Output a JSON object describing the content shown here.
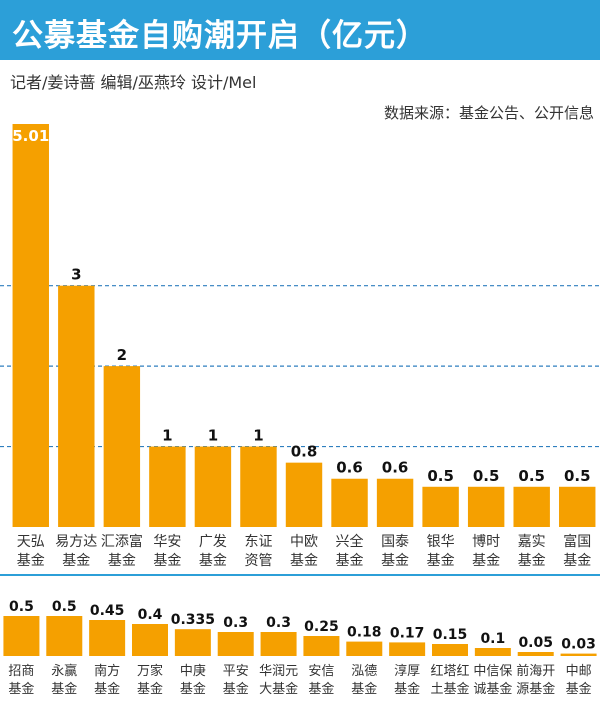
{
  "header": {
    "title": "公募基金自购潮开启（亿元）",
    "credits": "记者/姜诗蔷   编辑/巫燕玲  设计/Mel",
    "source": "数据来源：基金公告、公开信息"
  },
  "colors": {
    "header_bg": "#2c9fd8",
    "bar": "#f5a000",
    "gridline": "#2f7fbf",
    "divider": "#2c9fd8"
  },
  "chart_data": [
    {
      "type": "bar",
      "title": "",
      "xlabel": "",
      "ylabel": "",
      "ylim": [
        0,
        5.01
      ],
      "gridlines_at": [
        1,
        2,
        3
      ],
      "grid": "dashed horizontal",
      "categories": [
        [
          "天弘",
          "基金"
        ],
        [
          "易方达",
          "基金"
        ],
        [
          "汇添富",
          "基金"
        ],
        [
          "华安",
          "基金"
        ],
        [
          "广发",
          "基金"
        ],
        [
          "东证",
          "资管"
        ],
        [
          "中欧",
          "基金"
        ],
        [
          "兴全",
          "基金"
        ],
        [
          "国泰",
          "基金"
        ],
        [
          "银华",
          "基金"
        ],
        [
          "博时",
          "基金"
        ],
        [
          "嘉实",
          "基金"
        ],
        [
          "富国",
          "基金"
        ]
      ],
      "values": [
        5.01,
        3,
        2,
        1,
        1,
        1,
        0.8,
        0.6,
        0.6,
        0.5,
        0.5,
        0.5,
        0.5
      ],
      "value_labels": [
        "5.01",
        "3",
        "2",
        "1",
        "1",
        "1",
        "0.8",
        "0.6",
        "0.6",
        "0.5",
        "0.5",
        "0.5",
        "0.5"
      ]
    },
    {
      "type": "bar",
      "title": "",
      "xlabel": "",
      "ylabel": "",
      "ylim": [
        0,
        0.5
      ],
      "categories": [
        [
          "招商",
          "基金"
        ],
        [
          "永赢",
          "基金"
        ],
        [
          "南方",
          "基金"
        ],
        [
          "万家",
          "基金"
        ],
        [
          "中庚",
          "基金"
        ],
        [
          "平安",
          "基金"
        ],
        [
          "华润元",
          "大基金"
        ],
        [
          "安信",
          "基金"
        ],
        [
          "泓德",
          "基金"
        ],
        [
          "淳厚",
          "基金"
        ],
        [
          "红塔红",
          "土基金"
        ],
        [
          "中信保",
          "诚基金"
        ],
        [
          "前海开",
          "源基金"
        ],
        [
          "中邮",
          "基金"
        ]
      ],
      "values": [
        0.5,
        0.5,
        0.45,
        0.4,
        0.335,
        0.3,
        0.3,
        0.25,
        0.18,
        0.17,
        0.15,
        0.1,
        0.05,
        0.03
      ],
      "value_labels": [
        "0.5",
        "0.5",
        "0.45",
        "0.4",
        "0.335",
        "0.3",
        "0.3",
        "0.25",
        "0.18",
        "0.17",
        "0.15",
        "0.1",
        "0.05",
        "0.03"
      ]
    }
  ]
}
